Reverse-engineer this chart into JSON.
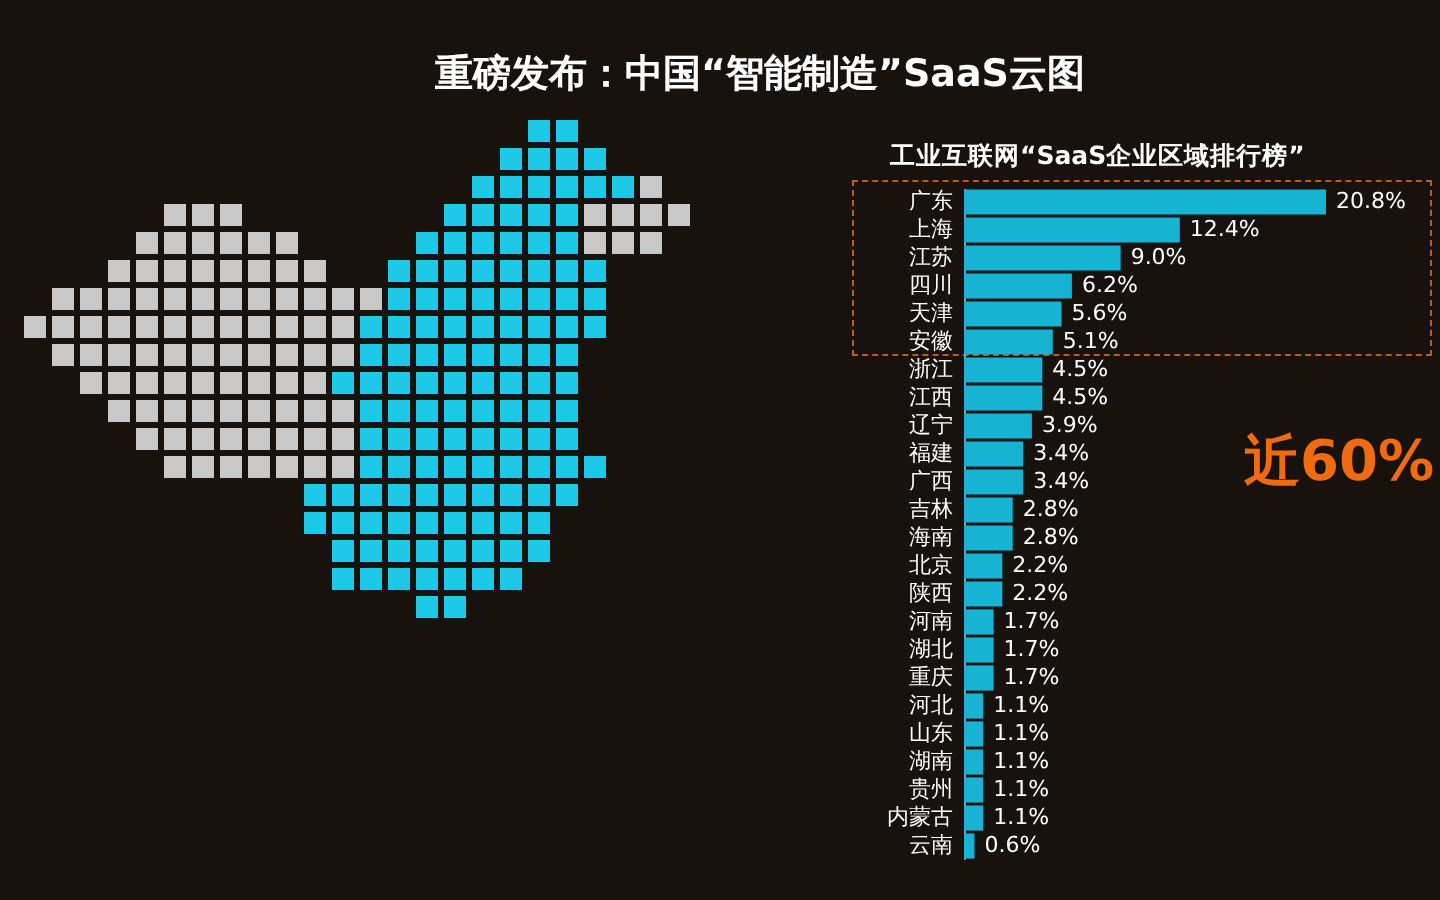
{
  "chart_data": {
    "type": "bar",
    "orientation": "horizontal",
    "title": "重磅发布：中国“智能制造”SaaS云图",
    "subtitle": "工业互联网“SaaS企业区域排行榜”",
    "categories": [
      "广东",
      "上海",
      "江苏",
      "四川",
      "天津",
      "安徽",
      "浙江",
      "江西",
      "辽宁",
      "福建",
      "广西",
      "吉林",
      "海南",
      "北京",
      "陕西",
      "河南",
      "湖北",
      "重庆",
      "河北",
      "山东",
      "湖南",
      "贵州",
      "内蒙古",
      "云南"
    ],
    "values": [
      20.8,
      12.4,
      9.0,
      6.2,
      5.6,
      5.1,
      4.5,
      4.5,
      3.9,
      3.4,
      3.4,
      2.8,
      2.8,
      2.2,
      2.2,
      1.7,
      1.7,
      1.7,
      1.1,
      1.1,
      1.1,
      1.1,
      1.1,
      0.6
    ],
    "value_labels": [
      "20.8%",
      "12.4%",
      "9.0%",
      "6.2%",
      "5.6%",
      "5.1%",
      "4.5%",
      "4.5%",
      "3.9%",
      "3.4%",
      "3.4%",
      "2.8%",
      "2.8%",
      "2.2%",
      "2.2%",
      "1.7%",
      "1.7%",
      "1.7%",
      "1.1%",
      "1.1%",
      "1.1%",
      "1.1%",
      "1.1%",
      "0.6%"
    ],
    "color": "#17b3d3",
    "annotations": [
      "近60%"
    ]
  }
}
